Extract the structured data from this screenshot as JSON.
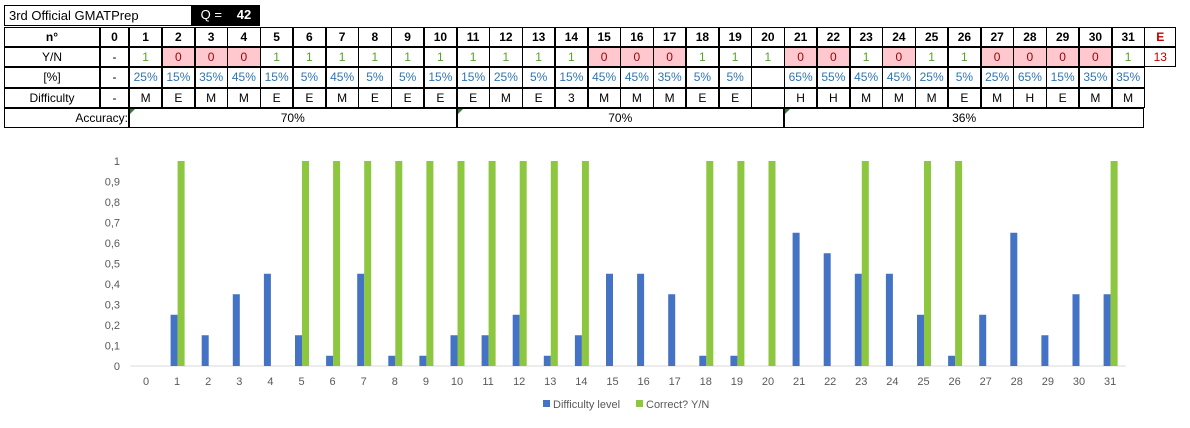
{
  "sheet": {
    "title": "3rd Official GMATPrep",
    "q_label": "Q =",
    "q_value": "42",
    "row_labels": {
      "n": "n°",
      "yn": "Y/N",
      "pct": "[%]",
      "difficulty": "Difficulty",
      "accuracy": "Accuracy:"
    },
    "col0": {
      "n": "0",
      "yn": "-",
      "pct": "-",
      "difficulty": "-"
    },
    "numbers": [
      "1",
      "2",
      "3",
      "4",
      "5",
      "6",
      "7",
      "8",
      "9",
      "10",
      "11",
      "12",
      "13",
      "14",
      "15",
      "16",
      "17",
      "18",
      "19",
      "20",
      "21",
      "22",
      "23",
      "24",
      "25",
      "26",
      "27",
      "28",
      "29",
      "30",
      "31"
    ],
    "yn": [
      "1",
      "0",
      "0",
      "0",
      "1",
      "1",
      "1",
      "1",
      "1",
      "1",
      "1",
      "1",
      "1",
      "1",
      "0",
      "0",
      "0",
      "1",
      "1",
      "1",
      "0",
      "0",
      "1",
      "0",
      "1",
      "1",
      "0",
      "0",
      "0",
      "0",
      "1"
    ],
    "pct": [
      "25%",
      "15%",
      "35%",
      "45%",
      "15%",
      "5%",
      "45%",
      "5%",
      "5%",
      "15%",
      "15%",
      "25%",
      "5%",
      "15%",
      "45%",
      "45%",
      "35%",
      "5%",
      "5%",
      "",
      "65%",
      "55%",
      "45%",
      "45%",
      "25%",
      "5%",
      "25%",
      "65%",
      "15%",
      "35%",
      "35%"
    ],
    "difficulty": [
      "M",
      "E",
      "M",
      "M",
      "E",
      "E",
      "M",
      "E",
      "E",
      "E",
      "E",
      "M",
      "E",
      "3",
      "M",
      "M",
      "M",
      "E",
      "E",
      "",
      "H",
      "H",
      "M",
      "M",
      "M",
      "E",
      "M",
      "H",
      "E",
      "M",
      "M"
    ],
    "extra_header": "E",
    "extra_value": "13",
    "accuracy": [
      "70%",
      "70%",
      "36%"
    ]
  },
  "chart_data": {
    "type": "bar",
    "categories": [
      "0",
      "1",
      "2",
      "3",
      "4",
      "5",
      "6",
      "7",
      "8",
      "9",
      "10",
      "11",
      "12",
      "13",
      "14",
      "15",
      "16",
      "17",
      "18",
      "19",
      "20",
      "21",
      "22",
      "23",
      "24",
      "25",
      "26",
      "27",
      "28",
      "29",
      "30",
      "31"
    ],
    "series": [
      {
        "name": "Difficulty level",
        "color": "#4472c4",
        "values": [
          0,
          0.25,
          0.15,
          0.35,
          0.45,
          0.15,
          0.05,
          0.45,
          0.05,
          0.05,
          0.15,
          0.15,
          0.25,
          0.05,
          0.15,
          0.45,
          0.45,
          0.35,
          0.05,
          0.05,
          0,
          0.65,
          0.55,
          0.45,
          0.45,
          0.25,
          0.05,
          0.25,
          0.65,
          0.15,
          0.35,
          0.35
        ]
      },
      {
        "name": "Correct? Y/N",
        "color": "#8dc63f",
        "values": [
          0,
          1,
          0,
          0,
          0,
          1,
          1,
          1,
          1,
          1,
          1,
          1,
          1,
          1,
          1,
          0,
          0,
          0,
          1,
          1,
          1,
          0,
          0,
          1,
          0,
          1,
          1,
          0,
          0,
          0,
          0,
          1
        ]
      }
    ],
    "ylim": [
      0,
      1
    ],
    "yticks": [
      "0",
      "0,1",
      "0,2",
      "0,3",
      "0,4",
      "0,5",
      "0,6",
      "0,7",
      "0,8",
      "0,9",
      "1"
    ],
    "legend_position": "bottom"
  }
}
